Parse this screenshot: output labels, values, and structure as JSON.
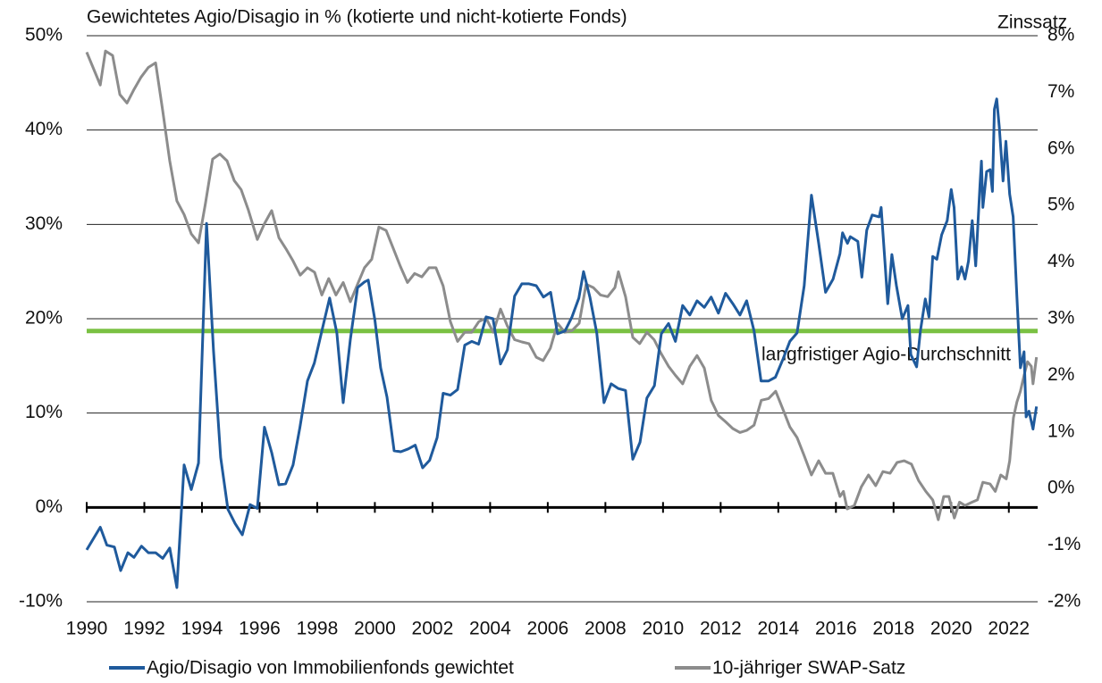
{
  "chart_data": {
    "type": "line",
    "title": "Gewichtetes Agio/Disagio in % (kotierte und nicht-kotierte Fonds)",
    "y2_label": "Zinssatz",
    "xlim": [
      1990,
      2023
    ],
    "xticks": [
      1990,
      1992,
      1994,
      1996,
      1998,
      2000,
      2002,
      2004,
      2006,
      2008,
      2010,
      2012,
      2014,
      2016,
      2018,
      2020,
      2022
    ],
    "ylim": [
      -10,
      50
    ],
    "yticks": [
      {
        "value": 50,
        "label": "50%"
      },
      {
        "value": 40,
        "label": "40%"
      },
      {
        "value": 30,
        "label": "30%"
      },
      {
        "value": 20,
        "label": "20%"
      },
      {
        "value": 10,
        "label": "10%"
      },
      {
        "value": 0,
        "label": "0%"
      },
      {
        "value": -10,
        "label": "-10%"
      }
    ],
    "y2lim": [
      -2,
      8
    ],
    "y2ticks": [
      {
        "value": 8,
        "label": "8%"
      },
      {
        "value": 7,
        "label": "7%"
      },
      {
        "value": 6,
        "label": "6%"
      },
      {
        "value": 5,
        "label": "5%"
      },
      {
        "value": 4,
        "label": "4%"
      },
      {
        "value": 3,
        "label": "3%"
      },
      {
        "value": 2,
        "label": "2%"
      },
      {
        "value": 1,
        "label": "1%"
      },
      {
        "value": 0,
        "label": "0%"
      },
      {
        "value": -1,
        "label": "-1%"
      },
      {
        "value": -2,
        "label": "-2%"
      }
    ],
    "grid": true,
    "reference_line": {
      "label": "langfristiger Agio-Durchschnitt",
      "value": 18.7,
      "color": "#7ac143"
    },
    "series": [
      {
        "name": "Agio/Disagio von Immobilienfonds gewichtet",
        "color": "#1f5a9c",
        "x": [
          1990.0,
          1990.47,
          1990.7,
          1990.96,
          1991.18,
          1991.43,
          1991.64,
          1991.9,
          1992.14,
          1992.39,
          1992.64,
          1992.88,
          1993.13,
          1993.38,
          1993.63,
          1993.88,
          1994.16,
          1994.4,
          1994.65,
          1994.9,
          1995.15,
          1995.4,
          1995.67,
          1995.92,
          1996.17,
          1996.42,
          1996.67,
          1996.9,
          1997.16,
          1997.4,
          1997.66,
          1997.9,
          1998.16,
          1998.43,
          1998.68,
          1998.9,
          1999.15,
          1999.4,
          1999.64,
          1999.77,
          2000.0,
          2000.2,
          2000.42,
          2000.67,
          2000.9,
          2001.16,
          2001.4,
          2001.66,
          2001.9,
          2002.16,
          2002.37,
          2002.62,
          2002.87,
          2003.12,
          2003.36,
          2003.6,
          2003.86,
          2004.1,
          2004.36,
          2004.6,
          2004.85,
          2005.1,
          2005.35,
          2005.6,
          2005.85,
          2006.1,
          2006.34,
          2006.6,
          2006.84,
          2007.08,
          2007.24,
          2007.46,
          2007.7,
          2007.95,
          2008.2,
          2008.45,
          2008.7,
          2008.95,
          2009.2,
          2009.44,
          2009.7,
          2009.94,
          2010.19,
          2010.43,
          2010.68,
          2010.93,
          2011.18,
          2011.43,
          2011.67,
          2011.92,
          2012.17,
          2012.42,
          2012.67,
          2012.9,
          2013.16,
          2013.4,
          2013.66,
          2013.9,
          2014.16,
          2014.4,
          2014.65,
          2014.9,
          2015.15,
          2015.4,
          2015.64,
          2015.9,
          2016.14,
          2016.23,
          2016.4,
          2016.5,
          2016.76,
          2016.9,
          2017.07,
          2017.26,
          2017.5,
          2017.57,
          2017.7,
          2017.8,
          2017.94,
          2018.1,
          2018.3,
          2018.5,
          2018.6,
          2018.8,
          2018.93,
          2019.1,
          2019.23,
          2019.36,
          2019.5,
          2019.67,
          2019.86,
          2020.0,
          2020.1,
          2020.23,
          2020.36,
          2020.48,
          2020.6,
          2020.73,
          2020.85,
          2021.0,
          2021.05,
          2021.1,
          2021.23,
          2021.35,
          2021.43,
          2021.5,
          2021.58,
          2021.67,
          2021.8,
          2021.9,
          2022.03,
          2022.15,
          2022.28,
          2022.4,
          2022.53,
          2022.6,
          2022.7,
          2022.84,
          2022.96
        ],
        "values": [
          -4.5,
          -2.1,
          -4.0,
          -4.2,
          -6.7,
          -4.8,
          -5.3,
          -4.1,
          -4.8,
          -4.8,
          -5.4,
          -4.3,
          -8.5,
          4.5,
          1.9,
          4.7,
          30.1,
          16.6,
          5.3,
          -0.2,
          -1.7,
          -2.9,
          0.3,
          -0.1,
          8.5,
          5.8,
          2.4,
          2.5,
          4.5,
          8.5,
          13.4,
          15.3,
          18.7,
          22.2,
          18.5,
          11.1,
          17.8,
          23.3,
          23.9,
          24.1,
          19.9,
          14.8,
          11.7,
          6.0,
          5.9,
          6.2,
          6.6,
          4.2,
          5.0,
          7.4,
          12.1,
          11.9,
          12.5,
          17.2,
          17.6,
          17.3,
          20.2,
          20.0,
          15.2,
          16.7,
          22.4,
          23.7,
          23.7,
          23.5,
          22.3,
          22.8,
          18.4,
          18.7,
          20.2,
          22.2,
          25.0,
          22.3,
          18.5,
          11.1,
          13.1,
          12.6,
          12.4,
          5.1,
          6.9,
          11.6,
          12.9,
          18.4,
          19.5,
          17.6,
          21.4,
          20.4,
          21.9,
          21.2,
          22.3,
          20.6,
          22.7,
          21.6,
          20.4,
          21.9,
          18.7,
          13.4,
          13.4,
          13.8,
          15.7,
          17.6,
          18.5,
          23.5,
          33.1,
          28.0,
          22.8,
          24.2,
          26.9,
          29.1,
          28.0,
          28.7,
          28.2,
          24.4,
          29.4,
          31.0,
          30.8,
          31.8,
          26.1,
          21.6,
          26.8,
          23.5,
          20.0,
          21.4,
          16.2,
          14.9,
          18.7,
          22.1,
          20.2,
          26.6,
          26.3,
          28.9,
          30.4,
          33.7,
          31.8,
          24.2,
          25.5,
          24.2,
          26.1,
          30.4,
          25.6,
          34.2,
          36.7,
          31.8,
          35.6,
          35.8,
          33.5,
          42.2,
          43.3,
          40.3,
          34.6,
          38.8,
          33.2,
          30.8,
          22.3,
          14.8,
          16.5,
          9.6,
          10.2,
          8.3,
          10.7
        ]
      },
      {
        "name": "10-jähriger SWAP-Satz",
        "color": "#8c8c8c",
        "axis": "y2",
        "x": [
          1990.0,
          1990.25,
          1990.47,
          1990.65,
          1990.9,
          1991.15,
          1991.4,
          1991.64,
          1991.89,
          1992.14,
          1992.39,
          1992.64,
          1992.88,
          1993.13,
          1993.38,
          1993.63,
          1993.88,
          1994.12,
          1994.37,
          1994.62,
          1994.87,
          1995.12,
          1995.36,
          1995.61,
          1995.92,
          1996.17,
          1996.42,
          1996.67,
          1996.91,
          1997.16,
          1997.41,
          1997.66,
          1997.91,
          1998.16,
          1998.4,
          1998.65,
          1998.9,
          1999.15,
          1999.4,
          1999.64,
          1999.89,
          2000.14,
          2000.39,
          2000.64,
          2000.88,
          2001.13,
          2001.38,
          2001.63,
          2001.88,
          2002.12,
          2002.37,
          2002.62,
          2002.87,
          2003.12,
          2003.36,
          2003.61,
          2003.86,
          2004.11,
          2004.36,
          2004.6,
          2004.85,
          2005.1,
          2005.35,
          2005.6,
          2005.84,
          2006.09,
          2006.34,
          2006.59,
          2006.84,
          2007.09,
          2007.33,
          2007.58,
          2007.83,
          2008.08,
          2008.33,
          2008.45,
          2008.7,
          2008.95,
          2009.19,
          2009.44,
          2009.69,
          2009.94,
          2010.19,
          2010.43,
          2010.68,
          2010.93,
          2011.18,
          2011.43,
          2011.67,
          2011.92,
          2012.17,
          2012.42,
          2012.67,
          2012.91,
          2013.16,
          2013.41,
          2013.66,
          2013.91,
          2014.16,
          2014.4,
          2014.65,
          2014.9,
          2015.15,
          2015.4,
          2015.64,
          2015.89,
          2016.14,
          2016.26,
          2016.39,
          2016.64,
          2016.88,
          2017.13,
          2017.38,
          2017.63,
          2017.88,
          2018.12,
          2018.37,
          2018.62,
          2018.87,
          2019.12,
          2019.36,
          2019.55,
          2019.74,
          2019.92,
          2020.11,
          2020.29,
          2020.48,
          2020.73,
          2020.91,
          2021.1,
          2021.35,
          2021.53,
          2021.72,
          2021.91,
          2022.03,
          2022.16,
          2022.28,
          2022.4,
          2022.53,
          2022.65,
          2022.78,
          2022.84,
          2022.96
        ],
        "values": [
          7.71,
          7.4,
          7.13,
          7.73,
          7.65,
          6.96,
          6.81,
          7.05,
          7.27,
          7.44,
          7.52,
          6.67,
          5.79,
          5.08,
          4.84,
          4.5,
          4.34,
          5.03,
          5.82,
          5.91,
          5.79,
          5.44,
          5.28,
          4.92,
          4.4,
          4.68,
          4.91,
          4.43,
          4.24,
          4.02,
          3.77,
          3.9,
          3.82,
          3.42,
          3.71,
          3.42,
          3.64,
          3.3,
          3.61,
          3.9,
          4.05,
          4.62,
          4.56,
          4.24,
          3.93,
          3.64,
          3.8,
          3.74,
          3.9,
          3.9,
          3.58,
          2.95,
          2.6,
          2.76,
          2.76,
          2.95,
          3.01,
          2.76,
          3.17,
          2.87,
          2.63,
          2.59,
          2.56,
          2.32,
          2.26,
          2.48,
          2.92,
          2.76,
          2.79,
          2.92,
          3.61,
          3.55,
          3.42,
          3.39,
          3.55,
          3.83,
          3.39,
          2.67,
          2.56,
          2.76,
          2.63,
          2.38,
          2.16,
          2.0,
          1.85,
          2.16,
          2.35,
          2.13,
          1.56,
          1.29,
          1.18,
          1.06,
          0.99,
          1.03,
          1.12,
          1.56,
          1.59,
          1.72,
          1.4,
          1.09,
          0.9,
          0.58,
          0.24,
          0.49,
          0.27,
          0.27,
          -0.14,
          -0.05,
          -0.36,
          -0.3,
          0.03,
          0.24,
          0.05,
          0.3,
          0.27,
          0.46,
          0.49,
          0.43,
          0.14,
          -0.05,
          -0.2,
          -0.55,
          -0.14,
          -0.14,
          -0.52,
          -0.24,
          -0.3,
          -0.24,
          -0.2,
          0.11,
          0.08,
          -0.05,
          0.24,
          0.17,
          0.49,
          1.25,
          1.53,
          1.72,
          2.0,
          2.24,
          2.16,
          1.85,
          2.32
        ]
      }
    ]
  }
}
